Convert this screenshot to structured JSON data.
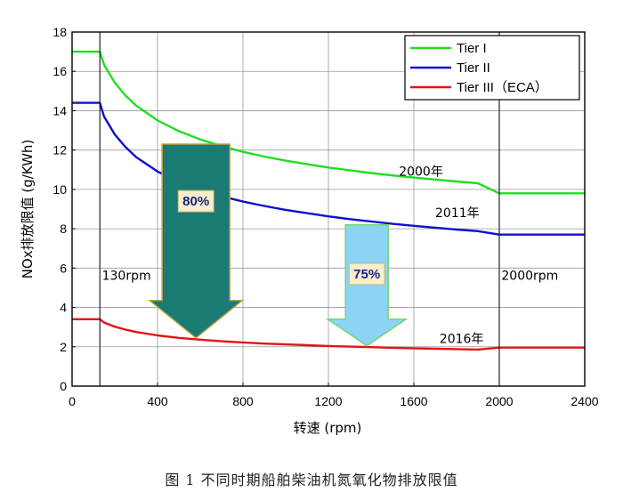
{
  "chart_data": {
    "type": "line",
    "xlabel": "转速 (rpm)",
    "ylabel": "NOx排放限值 (g/KWh)",
    "xlim": [
      0,
      2400
    ],
    "ylim": [
      0,
      18
    ],
    "xticks": [
      "0",
      "400",
      "800",
      "1200",
      "1600",
      "2000",
      "2400"
    ],
    "yticks": [
      "0",
      "2",
      "4",
      "6",
      "8",
      "10",
      "12",
      "14",
      "16",
      "18"
    ],
    "grid": true,
    "legend_position": "top-right",
    "series": [
      {
        "name": "Tier I",
        "color": "#22dd22",
        "points": [
          [
            0,
            17.0
          ],
          [
            130,
            17.0
          ],
          [
            150,
            16.33
          ],
          [
            200,
            15.42
          ],
          [
            250,
            14.77
          ],
          [
            300,
            14.26
          ],
          [
            400,
            13.51
          ],
          [
            500,
            12.96
          ],
          [
            600,
            12.54
          ],
          [
            700,
            12.2
          ],
          [
            800,
            11.91
          ],
          [
            900,
            11.67
          ],
          [
            1000,
            11.46
          ],
          [
            1100,
            11.28
          ],
          [
            1200,
            11.11
          ],
          [
            1300,
            10.97
          ],
          [
            1400,
            10.83
          ],
          [
            1500,
            10.71
          ],
          [
            1600,
            10.6
          ],
          [
            1700,
            10.5
          ],
          [
            1800,
            10.4
          ],
          [
            1900,
            10.31
          ],
          [
            2000,
            9.8
          ],
          [
            2400,
            9.8
          ]
        ]
      },
      {
        "name": "Tier II",
        "color": "#1010cc",
        "points": [
          [
            0,
            14.4
          ],
          [
            130,
            14.4
          ],
          [
            150,
            13.7
          ],
          [
            200,
            12.79
          ],
          [
            250,
            12.15
          ],
          [
            300,
            11.64
          ],
          [
            400,
            10.91
          ],
          [
            500,
            10.38
          ],
          [
            600,
            9.98
          ],
          [
            700,
            9.65
          ],
          [
            800,
            9.38
          ],
          [
            900,
            9.16
          ],
          [
            1000,
            8.96
          ],
          [
            1100,
            8.79
          ],
          [
            1200,
            8.63
          ],
          [
            1300,
            8.49
          ],
          [
            1400,
            8.37
          ],
          [
            1500,
            8.25
          ],
          [
            1600,
            8.15
          ],
          [
            1700,
            8.05
          ],
          [
            1800,
            7.96
          ],
          [
            1900,
            7.88
          ],
          [
            2000,
            7.7
          ],
          [
            2400,
            7.7
          ]
        ]
      },
      {
        "name": "Tier III（ECA）",
        "color": "#e31414",
        "points": [
          [
            0,
            3.4
          ],
          [
            130,
            3.4
          ],
          [
            150,
            3.23
          ],
          [
            200,
            3.02
          ],
          [
            250,
            2.87
          ],
          [
            300,
            2.75
          ],
          [
            400,
            2.58
          ],
          [
            500,
            2.45
          ],
          [
            600,
            2.36
          ],
          [
            700,
            2.28
          ],
          [
            800,
            2.22
          ],
          [
            900,
            2.16
          ],
          [
            1000,
            2.12
          ],
          [
            1100,
            2.08
          ],
          [
            1200,
            2.04
          ],
          [
            1300,
            2.01
          ],
          [
            1400,
            1.98
          ],
          [
            1500,
            1.95
          ],
          [
            1600,
            1.92
          ],
          [
            1700,
            1.9
          ],
          [
            1800,
            1.88
          ],
          [
            1900,
            1.86
          ],
          [
            2000,
            1.96
          ],
          [
            2400,
            1.96
          ]
        ]
      }
    ],
    "annotations": [
      {
        "text": "2000年",
        "x": 1530,
        "y": 10.7
      },
      {
        "text": "2011年",
        "x": 1700,
        "y": 8.6
      },
      {
        "text": "2016年",
        "x": 1720,
        "y": 2.2
      },
      {
        "text": "130rpm",
        "x": 140,
        "y": 5.4
      },
      {
        "text": "2000rpm",
        "x": 2010,
        "y": 5.4
      }
    ],
    "vlines": [
      130,
      2000
    ],
    "reduction_arrows": [
      {
        "label": "80%",
        "from": 12.3,
        "to": 2.45,
        "x": 580,
        "fill": "#1a7a74"
      },
      {
        "label": "75%",
        "from": 8.2,
        "to": 2.05,
        "x": 1380,
        "fill": "#8cd4f5"
      }
    ]
  },
  "caption": "图 1   不同时期船舶柴油机氮氧化物排放限值"
}
